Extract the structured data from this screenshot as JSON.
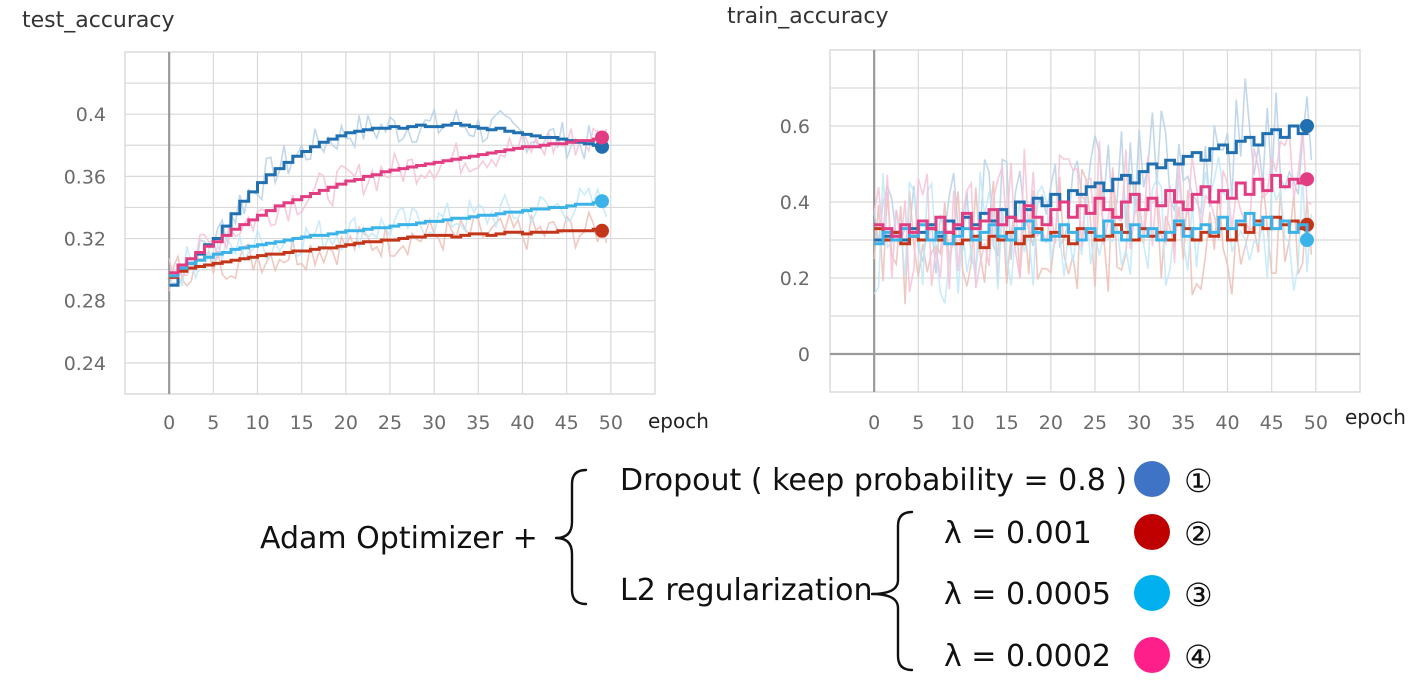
{
  "colors": {
    "dropout": "#1f6fb1",
    "l2_0001": "#c4361a",
    "l2_00005": "#3cb3e8",
    "l2_00002": "#e23c82",
    "legend_dropout": "#3f73c6",
    "legend_l2_0001": "#c00000",
    "legend_l2_00005": "#00b0ef",
    "legend_l2_00002": "#ff1f8a"
  },
  "chart_data": [
    {
      "type": "line",
      "title": "test_accuracy",
      "xlabel": "epoch",
      "ylabel": "",
      "xlim": [
        -5,
        55
      ],
      "ylim": [
        0.22,
        0.44
      ],
      "xticks": [
        0,
        5,
        10,
        15,
        20,
        25,
        30,
        35,
        40,
        45,
        50
      ],
      "xtick_labels": [
        "0",
        "5",
        "10",
        "15",
        "20",
        "25",
        "30",
        "35",
        "40",
        "45",
        "50"
      ],
      "yticks": [
        0.24,
        0.28,
        0.32,
        0.36,
        0.4
      ],
      "ytick_labels": [
        "0.24",
        "0.28",
        "0.32",
        "0.36",
        "0.4"
      ],
      "grid": true,
      "x": [
        0,
        1,
        2,
        3,
        4,
        5,
        6,
        7,
        8,
        9,
        10,
        11,
        12,
        13,
        14,
        15,
        16,
        17,
        18,
        19,
        20,
        21,
        22,
        23,
        24,
        25,
        26,
        27,
        28,
        29,
        30,
        31,
        32,
        33,
        34,
        35,
        36,
        37,
        38,
        39,
        40,
        41,
        42,
        43,
        44,
        45,
        46,
        47,
        48,
        49
      ],
      "series": [
        {
          "color_key": "dropout",
          "values": [
            0.29,
            0.3,
            0.304,
            0.31,
            0.316,
            0.32,
            0.328,
            0.336,
            0.344,
            0.35,
            0.356,
            0.361,
            0.365,
            0.369,
            0.373,
            0.376,
            0.379,
            0.382,
            0.384,
            0.386,
            0.388,
            0.389,
            0.39,
            0.391,
            0.391,
            0.392,
            0.391,
            0.392,
            0.393,
            0.392,
            0.392,
            0.393,
            0.394,
            0.393,
            0.392,
            0.391,
            0.39,
            0.391,
            0.389,
            0.388,
            0.387,
            0.386,
            0.385,
            0.385,
            0.384,
            0.383,
            0.382,
            0.381,
            0.38,
            0.379
          ]
        },
        {
          "color_key": "l2_0001",
          "values": [
            0.295,
            0.299,
            0.301,
            0.302,
            0.303,
            0.304,
            0.305,
            0.306,
            0.307,
            0.308,
            0.309,
            0.31,
            0.31,
            0.311,
            0.312,
            0.312,
            0.313,
            0.314,
            0.314,
            0.315,
            0.316,
            0.317,
            0.318,
            0.318,
            0.319,
            0.319,
            0.32,
            0.321,
            0.321,
            0.322,
            0.322,
            0.322,
            0.321,
            0.322,
            0.323,
            0.323,
            0.322,
            0.323,
            0.324,
            0.324,
            0.323,
            0.324,
            0.324,
            0.324,
            0.325,
            0.325,
            0.325,
            0.325,
            0.326,
            0.325
          ]
        },
        {
          "color_key": "l2_00005",
          "values": [
            0.296,
            0.301,
            0.304,
            0.306,
            0.308,
            0.31,
            0.311,
            0.313,
            0.314,
            0.315,
            0.316,
            0.317,
            0.318,
            0.319,
            0.32,
            0.321,
            0.322,
            0.322,
            0.323,
            0.324,
            0.325,
            0.325,
            0.326,
            0.327,
            0.327,
            0.328,
            0.329,
            0.329,
            0.33,
            0.331,
            0.331,
            0.332,
            0.333,
            0.333,
            0.334,
            0.335,
            0.335,
            0.336,
            0.337,
            0.337,
            0.338,
            0.339,
            0.339,
            0.34,
            0.34,
            0.341,
            0.342,
            0.342,
            0.343,
            0.344
          ]
        },
        {
          "color_key": "l2_00002",
          "values": [
            0.298,
            0.303,
            0.307,
            0.311,
            0.315,
            0.318,
            0.322,
            0.326,
            0.329,
            0.332,
            0.335,
            0.338,
            0.341,
            0.343,
            0.345,
            0.347,
            0.349,
            0.351,
            0.353,
            0.355,
            0.357,
            0.358,
            0.36,
            0.361,
            0.363,
            0.364,
            0.365,
            0.366,
            0.367,
            0.368,
            0.369,
            0.37,
            0.371,
            0.372,
            0.373,
            0.374,
            0.375,
            0.376,
            0.377,
            0.378,
            0.379,
            0.379,
            0.38,
            0.381,
            0.381,
            0.382,
            0.383,
            0.383,
            0.384,
            0.385
          ]
        }
      ]
    },
    {
      "type": "line",
      "title": "train_accuracy",
      "xlabel": "epoch",
      "ylabel": "",
      "xlim": [
        -5,
        55
      ],
      "ylim": [
        -0.1,
        0.8
      ],
      "xticks": [
        0,
        5,
        10,
        15,
        20,
        25,
        30,
        35,
        40,
        45,
        50
      ],
      "xtick_labels": [
        "0",
        "5",
        "10",
        "15",
        "20",
        "25",
        "30",
        "35",
        "40",
        "45",
        "50"
      ],
      "yticks": [
        0,
        0.2,
        0.4,
        0.6
      ],
      "ytick_labels": [
        "0",
        "0.2",
        "0.4",
        "0.6"
      ],
      "grid": true,
      "x": [
        0,
        1,
        2,
        3,
        4,
        5,
        6,
        7,
        8,
        9,
        10,
        11,
        12,
        13,
        14,
        15,
        16,
        17,
        18,
        19,
        20,
        21,
        22,
        23,
        24,
        25,
        26,
        27,
        28,
        29,
        30,
        31,
        32,
        33,
        34,
        35,
        36,
        37,
        38,
        39,
        40,
        41,
        42,
        43,
        44,
        45,
        46,
        47,
        48,
        49
      ],
      "series": [
        {
          "color_key": "dropout",
          "values": [
            0.3,
            0.31,
            0.32,
            0.3,
            0.33,
            0.32,
            0.34,
            0.31,
            0.35,
            0.33,
            0.36,
            0.34,
            0.37,
            0.35,
            0.38,
            0.36,
            0.4,
            0.38,
            0.41,
            0.39,
            0.42,
            0.4,
            0.43,
            0.42,
            0.44,
            0.45,
            0.43,
            0.46,
            0.47,
            0.45,
            0.48,
            0.5,
            0.49,
            0.51,
            0.5,
            0.52,
            0.53,
            0.51,
            0.54,
            0.55,
            0.53,
            0.56,
            0.57,
            0.55,
            0.58,
            0.59,
            0.57,
            0.6,
            0.58,
            0.6
          ]
        },
        {
          "color_key": "l2_0001",
          "values": [
            0.33,
            0.3,
            0.32,
            0.29,
            0.31,
            0.3,
            0.33,
            0.3,
            0.32,
            0.29,
            0.3,
            0.31,
            0.28,
            0.31,
            0.3,
            0.32,
            0.29,
            0.31,
            0.33,
            0.3,
            0.32,
            0.31,
            0.29,
            0.33,
            0.32,
            0.3,
            0.31,
            0.34,
            0.32,
            0.3,
            0.33,
            0.31,
            0.32,
            0.3,
            0.34,
            0.33,
            0.3,
            0.32,
            0.31,
            0.33,
            0.3,
            0.34,
            0.32,
            0.35,
            0.33,
            0.36,
            0.34,
            0.35,
            0.33,
            0.34
          ]
        },
        {
          "color_key": "l2_00005",
          "values": [
            0.29,
            0.32,
            0.3,
            0.33,
            0.31,
            0.34,
            0.3,
            0.32,
            0.29,
            0.31,
            0.33,
            0.3,
            0.32,
            0.34,
            0.31,
            0.3,
            0.33,
            0.35,
            0.32,
            0.3,
            0.31,
            0.34,
            0.32,
            0.3,
            0.33,
            0.31,
            0.35,
            0.32,
            0.3,
            0.34,
            0.31,
            0.33,
            0.3,
            0.32,
            0.35,
            0.31,
            0.33,
            0.34,
            0.32,
            0.36,
            0.33,
            0.35,
            0.37,
            0.34,
            0.36,
            0.33,
            0.35,
            0.32,
            0.34,
            0.3
          ]
        },
        {
          "color_key": "l2_00002",
          "values": [
            0.34,
            0.33,
            0.31,
            0.34,
            0.32,
            0.35,
            0.33,
            0.36,
            0.32,
            0.34,
            0.37,
            0.33,
            0.35,
            0.38,
            0.34,
            0.36,
            0.35,
            0.39,
            0.36,
            0.34,
            0.38,
            0.4,
            0.36,
            0.39,
            0.37,
            0.41,
            0.38,
            0.36,
            0.4,
            0.42,
            0.38,
            0.41,
            0.39,
            0.43,
            0.4,
            0.38,
            0.42,
            0.44,
            0.4,
            0.43,
            0.41,
            0.45,
            0.42,
            0.46,
            0.43,
            0.47,
            0.44,
            0.46,
            0.45,
            0.46
          ]
        }
      ]
    }
  ],
  "legend": {
    "prefix": "Adam Optimizer +",
    "dropout_label": "Dropout ( keep probability = 0.8 )",
    "l2_label": "L2 regularization",
    "l2_items": [
      {
        "label": "λ = 0.001",
        "num": "②",
        "color_key": "legend_l2_0001"
      },
      {
        "label": "λ = 0.0005",
        "num": "③",
        "color_key": "legend_l2_00005"
      },
      {
        "label": "λ  = 0.0002",
        "num": "④",
        "color_key": "legend_l2_00002"
      }
    ],
    "dropout_num": "①",
    "dropout_color_key": "legend_dropout"
  }
}
